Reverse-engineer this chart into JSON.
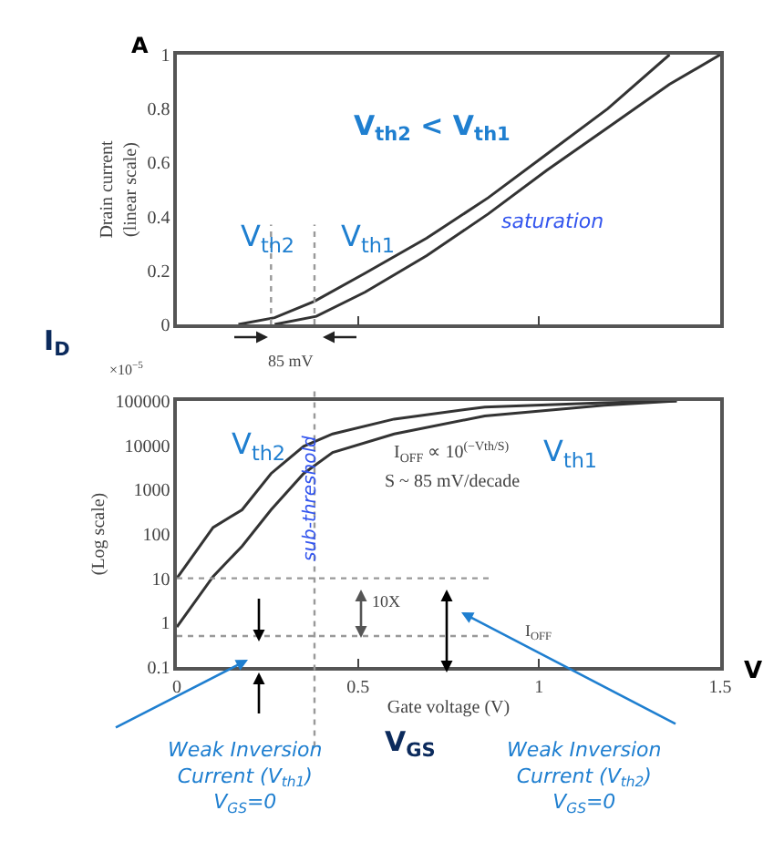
{
  "chart_data": [
    {
      "type": "line",
      "ylabel": "Drain current\n(linear scale)",
      "xlim": [
        0,
        1.5
      ],
      "ylim": [
        0,
        1
      ],
      "xticks": [
        {
          "value": 0.5,
          "label": null
        },
        {
          "value": 1,
          "label": null
        }
      ],
      "yticks": [
        0,
        0.2,
        0.4,
        0.6,
        0.8,
        1
      ],
      "tick_labels": "y",
      "marker": "none",
      "line_style": "solid",
      "series": [
        {
          "color": "#333333",
          "x": [
            0.17,
            0.27,
            0.38,
            0.52,
            0.69,
            0.86,
            1.02,
            1.19,
            1.36
          ],
          "values": [
            0,
            0.025,
            0.086,
            0.19,
            0.32,
            0.47,
            0.63,
            0.8,
            1.0
          ]
        },
        {
          "color": "#333333",
          "x": [
            0.27,
            0.385,
            0.52,
            0.69,
            0.86,
            1.02,
            1.19,
            1.36,
            1.5
          ],
          "values": [
            0,
            0.03,
            0.12,
            0.255,
            0.41,
            0.57,
            0.73,
            0.89,
            1.0
          ]
        }
      ],
      "ref_lines": [
        {
          "axis": "x",
          "value": 0.26,
          "color": "#999999",
          "line_style": "dotted"
        },
        {
          "axis": "x",
          "value": 0.38,
          "color": "#999999",
          "line_style": "dotted"
        }
      ],
      "annotations": [
        "A",
        "V$_{th2}$ < V$_{th1}$",
        "V$_{th2}$",
        "V$_{th1}$",
        "saturation",
        "85 mV",
        "I$_{D}$"
      ]
    },
    {
      "type": "line",
      "xlabel": "Gate voltage (V)",
      "ylabel": "(Log scale)",
      "log": "y",
      "xlim": [
        0,
        1.5
      ],
      "ylim": [
        0.1,
        100000
      ],
      "xticks": [
        0,
        0.5,
        1,
        1.5
      ],
      "yticks": [
        0.1,
        1,
        10,
        100,
        1000,
        10000,
        100000
      ],
      "marker": "none",
      "line_style": "solid",
      "series": [
        {
          "color": "#333333",
          "x": [
            0,
            0.1,
            0.18,
            0.26,
            0.35,
            0.43,
            0.6,
            0.85,
            1.18,
            1.38
          ],
          "values": [
            10,
            140,
            350,
            2300,
            9500,
            18000,
            39000,
            73000,
            91000,
            100000
          ]
        },
        {
          "color": "#333333",
          "x": [
            0,
            0.1,
            0.18,
            0.26,
            0.35,
            0.43,
            0.6,
            0.85,
            1.18,
            1.38
          ],
          "values": [
            0.8,
            11,
            53,
            350,
            2300,
            6900,
            18000,
            46000,
            80000,
            100000
          ]
        }
      ],
      "ref_lines": [
        {
          "axis": "x",
          "value": 0.38,
          "color": "#999999",
          "line_style": "dotted"
        },
        {
          "axis": "y",
          "value": 10,
          "color": "#999999",
          "line_style": "dotted"
        },
        {
          "axis": "y",
          "value": 0.5,
          "color": "#999999",
          "line_style": "dotted"
        }
      ],
      "annotations": [
        "×10$^{−5}$",
        "V$_{th2}$",
        "V$_{th1}$",
        "I$_{OFF}$ ∝ 10$^{(−Vth/S)}$",
        "S ~ 85 mV/decade",
        "sub-threshold",
        "10X",
        "I$_{OFF}$",
        "V",
        "V$_{GS}$",
        "Weak Inversion\nCurrent (V$_{th1}$)\nV$_{GS}$=0",
        "Weak Inversion\nCurrent (V$_{th2}$)\nV$_{GS}$=0"
      ]
    }
  ]
}
